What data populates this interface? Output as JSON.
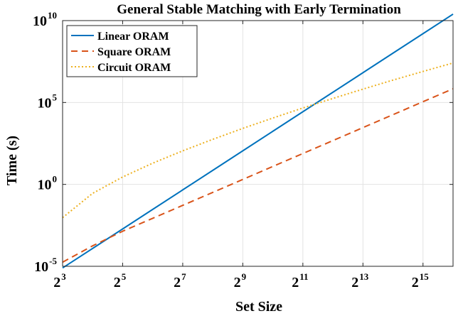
{
  "chart_data": {
    "type": "line",
    "title": "General Stable Matching with Early Termination",
    "xlabel": "Set Size",
    "ylabel": "Time (s)",
    "x_scale": "log2",
    "y_scale": "log10",
    "xlim": [
      8,
      65536
    ],
    "ylim": [
      1e-05,
      10000000000
    ],
    "grid": true,
    "legend_position": "top-left",
    "x_ticks": [
      {
        "base": "2",
        "exp": "3",
        "value": 8
      },
      {
        "base": "2",
        "exp": "5",
        "value": 32
      },
      {
        "base": "2",
        "exp": "7",
        "value": 128
      },
      {
        "base": "2",
        "exp": "9",
        "value": 512
      },
      {
        "base": "2",
        "exp": "11",
        "value": 2048
      },
      {
        "base": "2",
        "exp": "13",
        "value": 8192
      },
      {
        "base": "2",
        "exp": "15",
        "value": 32768
      }
    ],
    "y_ticks": [
      {
        "base": "10",
        "exp": "-5",
        "value": 1e-05
      },
      {
        "base": "10",
        "exp": "0",
        "value": 1
      },
      {
        "base": "10",
        "exp": "5",
        "value": 100000
      },
      {
        "base": "10",
        "exp": "10",
        "value": 10000000000
      }
    ],
    "series": [
      {
        "name": "Linear ORAM",
        "color": "#0072BD",
        "dash": "solid",
        "x": [
          8,
          16,
          32,
          64,
          128,
          256,
          512,
          1024,
          2048,
          4096,
          8192,
          16384,
          32768,
          65536
        ],
        "y": [
          7.94e-06,
          0.000123,
          0.00191,
          0.0298,
          0.464,
          7.2,
          112,
          1740,
          27100,
          422000,
          6560000,
          102000000,
          1590000000,
          24700000000
        ]
      },
      {
        "name": "Square ORAM",
        "color": "#D95319",
        "dash": "dashed",
        "x": [
          8,
          16,
          32,
          64,
          128,
          256,
          512,
          1024,
          2048,
          4096,
          8192,
          16384,
          32768,
          65536
        ],
        "y": [
          1.78e-05,
          0.000178,
          0.00138,
          0.0085,
          0.0525,
          0.325,
          2.0,
          12.4,
          76.6,
          473,
          2920,
          18100,
          112000,
          690000
        ]
      },
      {
        "name": "Circuit ORAM",
        "color": "#EDB120",
        "dash": "dotted",
        "x": [
          8,
          16,
          32,
          64,
          128,
          256,
          512,
          1024,
          2048,
          4096,
          8192,
          16384,
          32768,
          65536
        ],
        "y": [
          0.00933,
          0.282,
          2.84,
          19.7,
          112,
          563,
          2620,
          11300,
          46100,
          177000,
          657000,
          2330000,
          7890000,
          25800000
        ]
      }
    ]
  }
}
